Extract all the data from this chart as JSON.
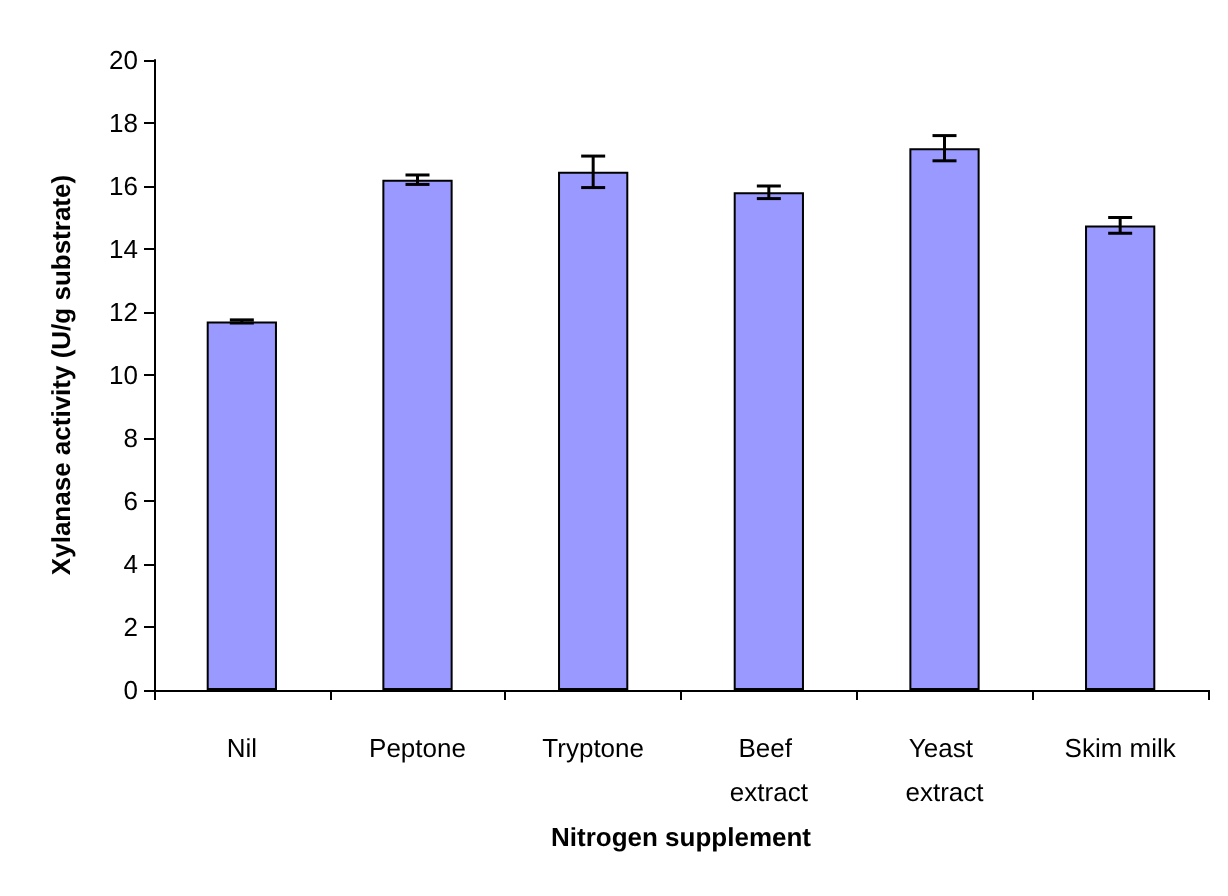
{
  "chart_data": {
    "type": "bar",
    "xlabel": "Nitrogen supplement",
    "ylabel": "Xylanase activity (U/g substrate)",
    "categories": [
      "Nil",
      "Peptone",
      "Tryptone",
      "Beef extract",
      "Yeast extract",
      "Skim milk"
    ],
    "values": [
      11.7,
      16.2,
      16.45,
      15.8,
      17.2,
      14.75
    ],
    "errors": [
      0.05,
      0.15,
      0.5,
      0.2,
      0.4,
      0.25
    ],
    "color": "#9999ff",
    "ylim": [
      0,
      20
    ],
    "yticks": [
      0,
      2,
      4,
      6,
      8,
      10,
      12,
      14,
      16,
      18,
      20
    ],
    "grid": false
  }
}
